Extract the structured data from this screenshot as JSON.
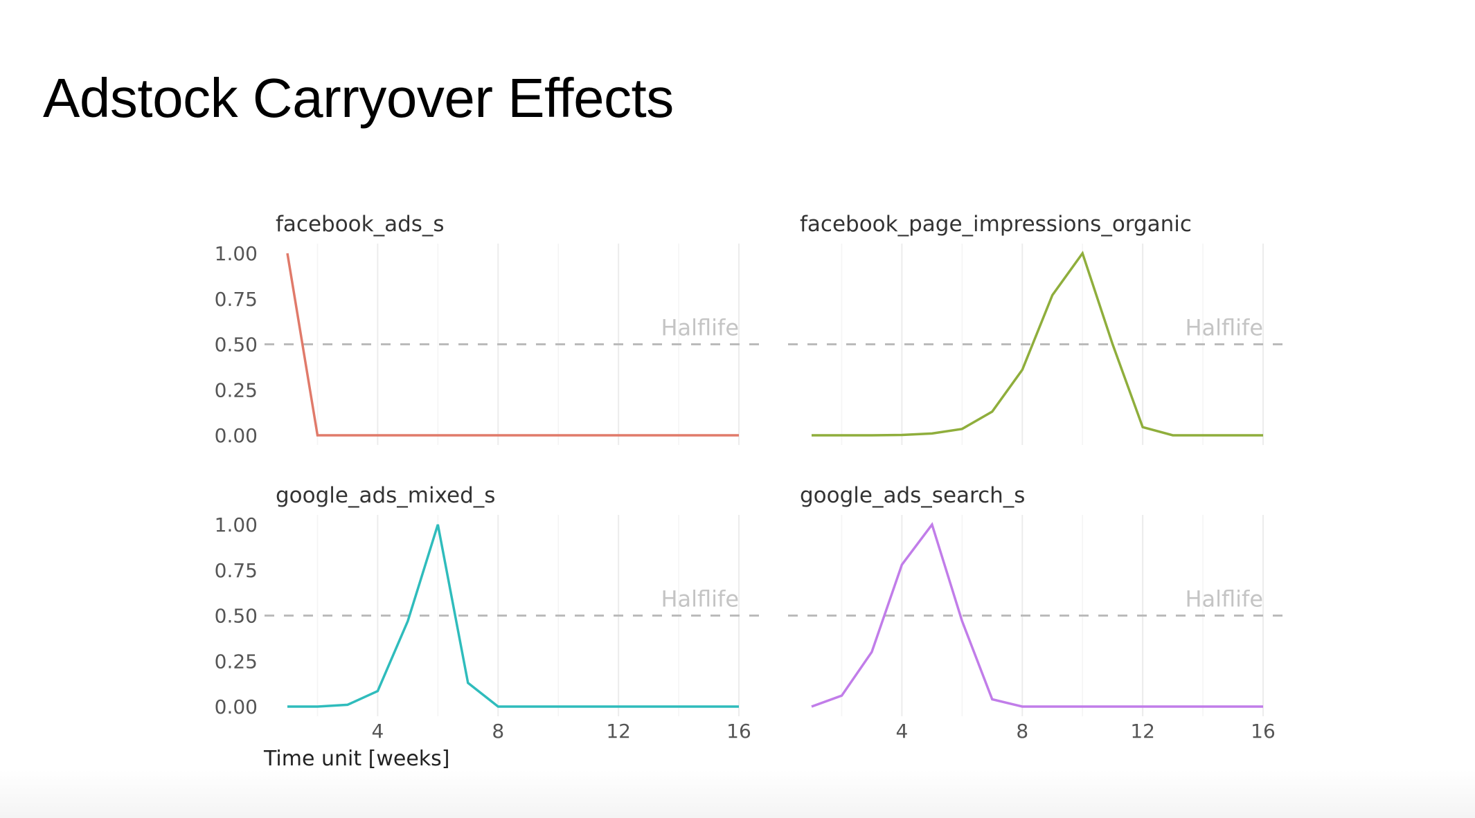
{
  "slide": {
    "title": "Adstock Carryover Effects"
  },
  "chart_data": {
    "type": "line",
    "facets": [
      {
        "title": "facebook_ads_s",
        "color": "#e07a6a",
        "x": [
          1,
          2,
          3,
          4,
          5,
          6,
          7,
          8,
          9,
          10,
          11,
          12,
          13,
          14,
          15,
          16
        ],
        "values": [
          1.0,
          0.0,
          0.0,
          0.0,
          0.0,
          0.0,
          0.0,
          0.0,
          0.0,
          0.0,
          0.0,
          0.0,
          0.0,
          0.0,
          0.0,
          0.0
        ]
      },
      {
        "title": "facebook_page_impressions_organic",
        "color": "#8fae3c",
        "x": [
          1,
          2,
          3,
          4,
          5,
          6,
          7,
          8,
          9,
          10,
          11,
          12,
          13,
          14,
          15,
          16
        ],
        "values": [
          0.0,
          0.0,
          0.0,
          0.002,
          0.01,
          0.035,
          0.13,
          0.36,
          0.77,
          1.0,
          0.5,
          0.045,
          0.0,
          0.0,
          0.0,
          0.0
        ]
      },
      {
        "title": "google_ads_mixed_s",
        "color": "#2fbcbc",
        "x": [
          1,
          2,
          3,
          4,
          5,
          6,
          7,
          8,
          9,
          10,
          11,
          12,
          13,
          14,
          15,
          16
        ],
        "values": [
          0.0,
          0.0,
          0.01,
          0.085,
          0.47,
          1.0,
          0.13,
          0.0,
          0.0,
          0.0,
          0.0,
          0.0,
          0.0,
          0.0,
          0.0,
          0.0
        ]
      },
      {
        "title": "google_ads_search_s",
        "color": "#c17de9",
        "x": [
          1,
          2,
          3,
          4,
          5,
          6,
          7,
          8,
          9,
          10,
          11,
          12,
          13,
          14,
          15,
          16
        ],
        "values": [
          0.0,
          0.06,
          0.3,
          0.78,
          1.0,
          0.47,
          0.04,
          0.0,
          0.0,
          0.0,
          0.0,
          0.0,
          0.0,
          0.0,
          0.0,
          0.0
        ]
      }
    ],
    "ylim": [
      0,
      1
    ],
    "xlim": [
      1,
      16
    ],
    "yticks": [
      "0.00",
      "0.25",
      "0.50",
      "0.75",
      "1.00"
    ],
    "ytick_values": [
      0,
      0.25,
      0.5,
      0.75,
      1.0
    ],
    "xticks": [
      "4",
      "8",
      "12",
      "16"
    ],
    "xtick_values": [
      4,
      8,
      12,
      16
    ],
    "xlabel": "Time unit [weeks]",
    "ylabel": "",
    "reference_line": {
      "y": 0.5,
      "label": "Halflife",
      "style": "dashed",
      "color": "#bbbbbb"
    },
    "grid": true,
    "legend": "none"
  }
}
